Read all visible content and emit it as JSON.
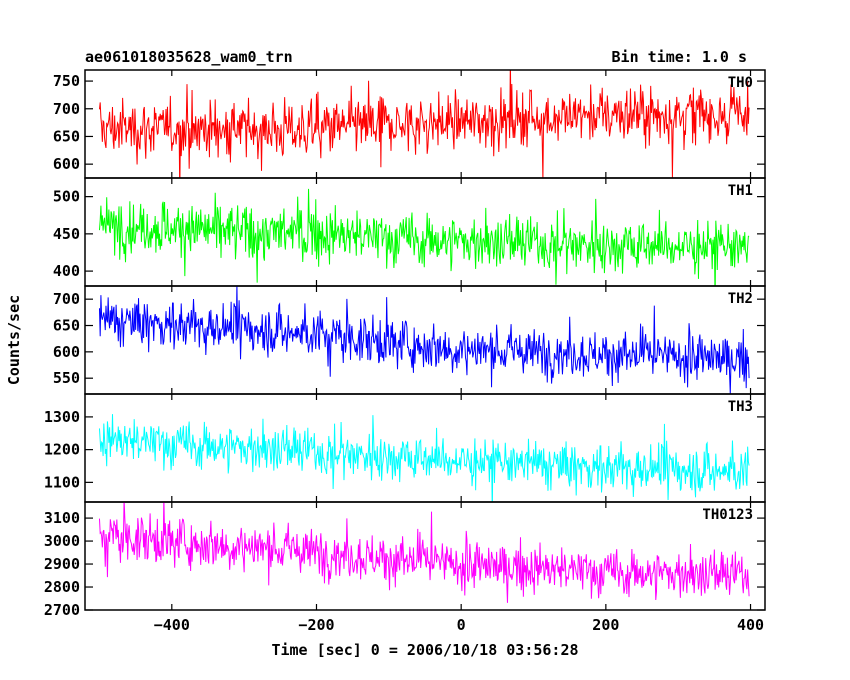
{
  "header": {
    "title": "ae061018035628_wam0_trn",
    "bin_time": "Bin time: 1.0 s"
  },
  "chart_data": {
    "type": "line",
    "xlabel": "Time [sec] 0 = 2006/10/18 03:56:28",
    "ylabel": "Counts/sec",
    "xlim": [
      -520,
      420
    ],
    "x_range": [
      -500,
      398
    ],
    "x_step": 1,
    "x_ticks": [
      -400,
      -200,
      0,
      200,
      400
    ],
    "x_tick_labels": [
      "−400",
      "−200",
      "0",
      "200",
      "400"
    ],
    "grid": false,
    "series": [
      {
        "name": "TH0",
        "color": "#ff0000",
        "ylim": [
          575,
          770
        ],
        "yticks": [
          600,
          650,
          700,
          750
        ],
        "trend": [
          [
            -500,
            665
          ],
          [
            -250,
            662
          ],
          [
            0,
            677
          ],
          [
            200,
            690
          ],
          [
            398,
            692
          ]
        ],
        "noise": 30,
        "display_range": [
          578,
          770
        ]
      },
      {
        "name": "TH1",
        "color": "#00ff00",
        "ylim": [
          380,
          525
        ],
        "yticks": [
          400,
          450,
          500
        ],
        "trend": [
          [
            -500,
            462
          ],
          [
            -250,
            452
          ],
          [
            0,
            440
          ],
          [
            200,
            435
          ],
          [
            398,
            432
          ]
        ],
        "noise": 21,
        "display_range": [
          383,
          525
        ]
      },
      {
        "name": "TH2",
        "color": "#0000ff",
        "ylim": [
          520,
          725
        ],
        "yticks": [
          550,
          600,
          650,
          700
        ],
        "trend": [
          [
            -500,
            660
          ],
          [
            -250,
            640
          ],
          [
            0,
            605
          ],
          [
            200,
            595
          ],
          [
            398,
            585
          ]
        ],
        "noise": 26,
        "display_range": [
          522,
          725
        ]
      },
      {
        "name": "TH3",
        "color": "#00ffff",
        "ylim": [
          1040,
          1370
        ],
        "yticks": [
          1100,
          1200,
          1300
        ],
        "trend": [
          [
            -500,
            1230
          ],
          [
            -250,
            1200
          ],
          [
            0,
            1165
          ],
          [
            200,
            1145
          ],
          [
            398,
            1135
          ]
        ],
        "noise": 42,
        "display_range": [
          1045,
          1370
        ]
      },
      {
        "name": "TH0123",
        "color": "#ff00ff",
        "ylim": [
          2700,
          3170
        ],
        "yticks": [
          2700,
          2800,
          2900,
          3000,
          3100
        ],
        "trend": [
          [
            -500,
            3025
          ],
          [
            -250,
            2965
          ],
          [
            0,
            2895
          ],
          [
            200,
            2865
          ],
          [
            398,
            2850
          ]
        ],
        "noise": 60,
        "display_range": [
          2702,
          3170
        ]
      }
    ]
  }
}
